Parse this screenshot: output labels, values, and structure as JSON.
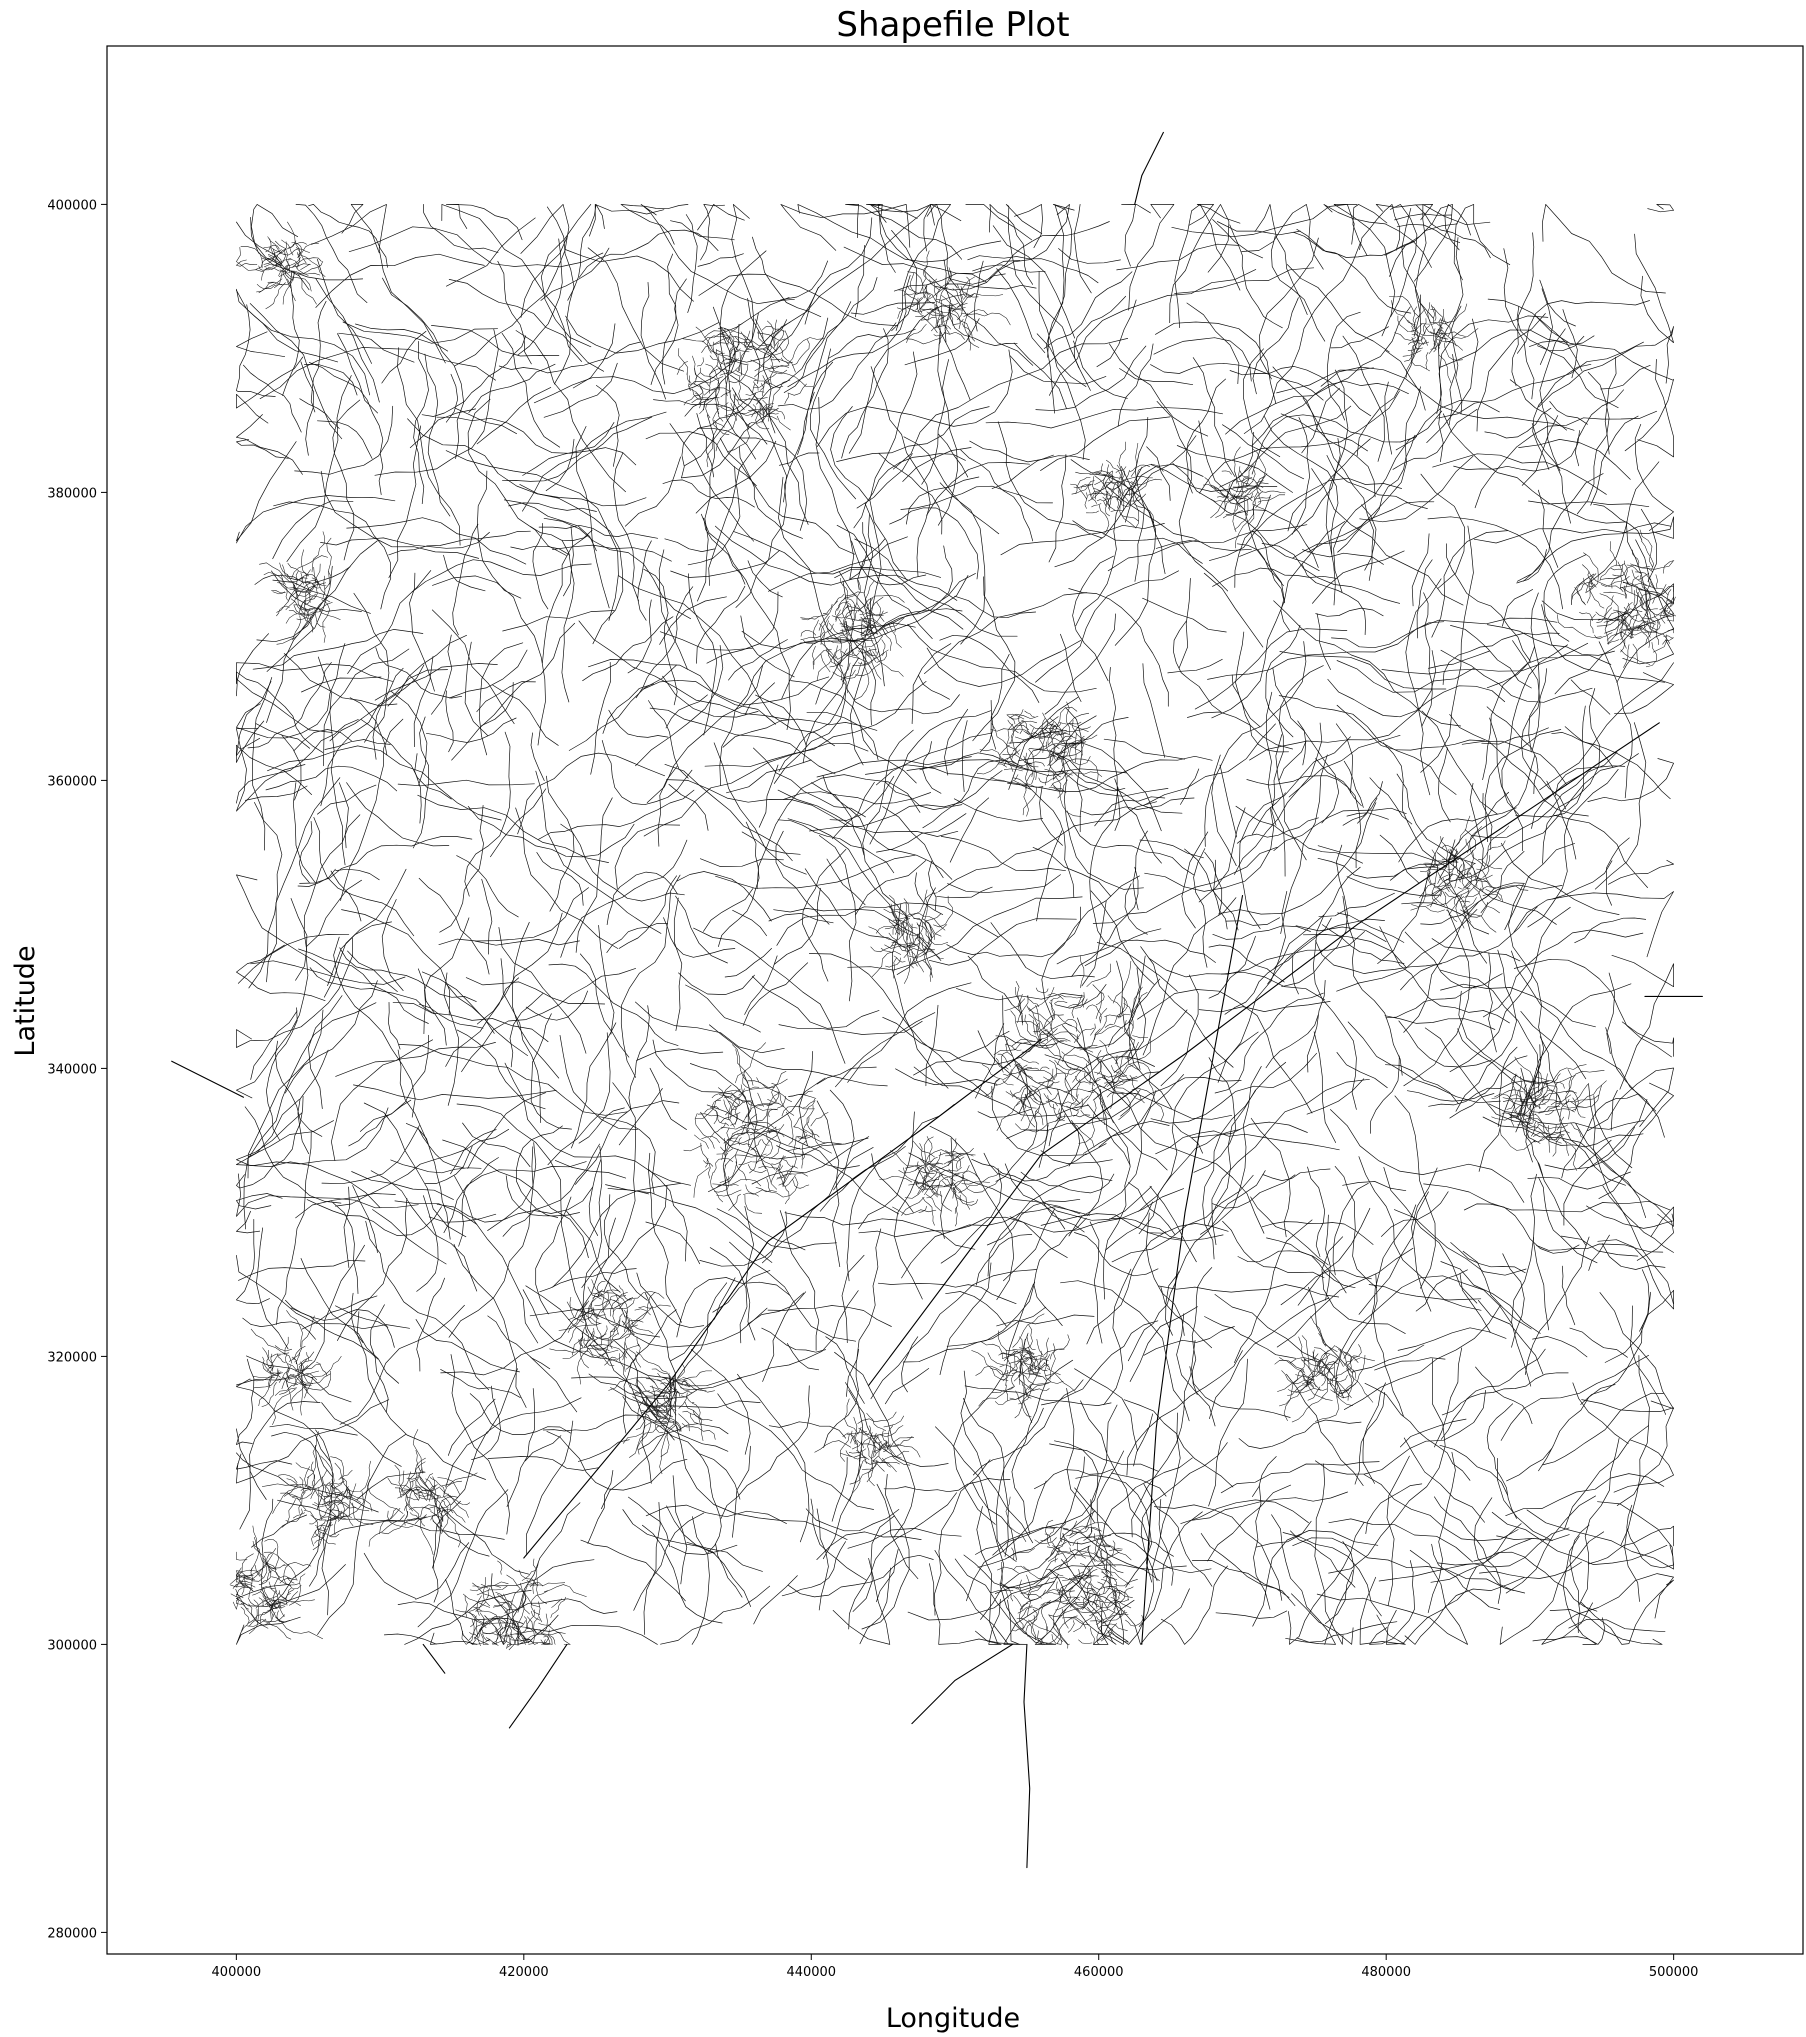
{
  "chart_data": {
    "type": "map",
    "title": "Shapefile Plot",
    "xlabel": "Longitude",
    "ylabel": "Latitude",
    "xlim": [
      391000,
      509000
    ],
    "ylim": [
      278500,
      411000
    ],
    "xticks": [
      400000,
      420000,
      440000,
      460000,
      480000,
      500000
    ],
    "yticks": [
      280000,
      300000,
      320000,
      340000,
      360000,
      380000,
      400000
    ],
    "xtick_labels": [
      "400000",
      "420000",
      "440000",
      "460000",
      "480000",
      "500000"
    ],
    "ytick_labels": [
      "280000",
      "300000",
      "320000",
      "340000",
      "360000",
      "380000",
      "400000"
    ],
    "data_extent": {
      "x": [
        400000,
        500000
      ],
      "y": [
        300000,
        400000
      ]
    },
    "line_color": "#000000",
    "grid": false,
    "legend": "none",
    "urban_clusters": [
      {
        "x": 435000,
        "y": 388000,
        "r": 3800
      },
      {
        "x": 458000,
        "y": 341000,
        "r": 5200
      },
      {
        "x": 458000,
        "y": 304000,
        "r": 4500
      },
      {
        "x": 436000,
        "y": 335000,
        "r": 4200
      },
      {
        "x": 497000,
        "y": 372000,
        "r": 3300
      },
      {
        "x": 419000,
        "y": 302000,
        "r": 3000
      },
      {
        "x": 402000,
        "y": 304000,
        "r": 2500
      },
      {
        "x": 443000,
        "y": 370000,
        "r": 2800
      },
      {
        "x": 456000,
        "y": 362000,
        "r": 2800
      },
      {
        "x": 491000,
        "y": 337000,
        "r": 2400
      },
      {
        "x": 426000,
        "y": 322000,
        "r": 2500
      },
      {
        "x": 476000,
        "y": 319000,
        "r": 2000
      },
      {
        "x": 485000,
        "y": 353000,
        "r": 2200
      },
      {
        "x": 406000,
        "y": 310000,
        "r": 2200
      },
      {
        "x": 413000,
        "y": 310000,
        "r": 2000
      },
      {
        "x": 430000,
        "y": 317000,
        "r": 2000
      },
      {
        "x": 405000,
        "y": 373000,
        "r": 1700
      },
      {
        "x": 461000,
        "y": 380000,
        "r": 1900
      },
      {
        "x": 449000,
        "y": 393000,
        "r": 2000
      },
      {
        "x": 449000,
        "y": 332000,
        "r": 2000
      },
      {
        "x": 455000,
        "y": 319000,
        "r": 2000
      },
      {
        "x": 447000,
        "y": 349000,
        "r": 1800
      },
      {
        "x": 470000,
        "y": 380000,
        "r": 1500
      },
      {
        "x": 483000,
        "y": 391000,
        "r": 1400
      },
      {
        "x": 403000,
        "y": 396000,
        "r": 1600
      },
      {
        "x": 444000,
        "y": 314000,
        "r": 1600
      },
      {
        "x": 404000,
        "y": 319000,
        "r": 1700
      }
    ]
  }
}
